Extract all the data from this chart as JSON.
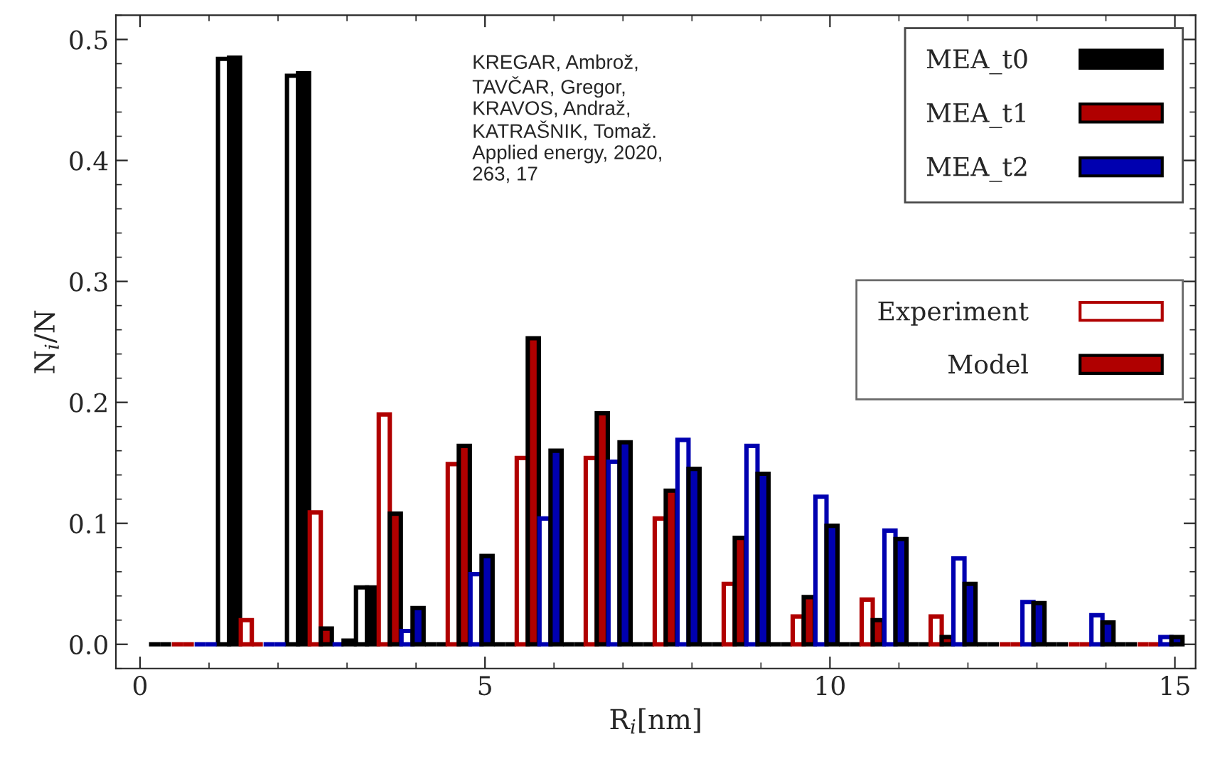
{
  "chart_data": {
    "type": "bar",
    "xlabel": "R$_{i}$[nm]",
    "ylabel": "N$_{i}$/N",
    "xlim": [
      -0.35,
      15.3
    ],
    "xticks": [
      0,
      5,
      10,
      15
    ],
    "ylim": [
      -0.02,
      0.52
    ],
    "yticks": [
      {
        "value": 0,
        "label": "0.0"
      },
      0.1,
      0.2,
      0.3,
      0.4,
      0.5
    ],
    "grid": false,
    "legend": "top right",
    "annotations": [
      "KREGAR, Ambrož,\nTAVČAR, Gregor,\nKRAVOS, Andraž,\nKATRAŠNIK, Tomaž.\nApplied energy, 2020,\n263, 17",
      "Experiment",
      "Model"
    ],
    "series": [
      {
        "color": "#000000",
        "x": [
          0.21,
          1.21,
          2.21,
          3.21,
          4.21,
          5.21,
          6.21,
          7.21,
          8.21,
          9.21,
          10.21,
          11.21,
          12.21,
          13.21,
          14.21
        ],
        "values": [
          0,
          0.484,
          0.47,
          0.047,
          0,
          0,
          0,
          0,
          0,
          0,
          0,
          0,
          0,
          0,
          0
        ]
      },
      {
        "name": "MEA_t0",
        "color": "#000000",
        "x": [
          0.37,
          1.37,
          2.37,
          3.37,
          4.37,
          5.37,
          6.37,
          7.37,
          8.37,
          9.37,
          10.37,
          11.37,
          12.37,
          13.37,
          14.37
        ],
        "values": [
          0,
          0.485,
          0.472,
          0.047,
          0,
          0,
          0,
          0,
          0,
          0,
          0,
          0,
          0,
          0,
          0
        ]
      },
      {
        "color": "#b00000",
        "x": [
          0.54,
          1.54,
          2.54,
          3.54,
          4.54,
          5.54,
          6.54,
          7.54,
          8.54,
          9.54,
          10.54,
          11.54,
          12.54,
          13.54,
          14.54
        ],
        "values": [
          0,
          0.02,
          0.109,
          0.19,
          0.149,
          0.154,
          0.154,
          0.104,
          0.05,
          0.023,
          0.037,
          0.023,
          0,
          0,
          0
        ]
      },
      {
        "name": "MEA_t1",
        "color": "#b00000",
        "x": [
          0.7,
          1.7,
          2.7,
          3.7,
          4.7,
          5.7,
          6.7,
          7.7,
          8.7,
          9.7,
          10.7,
          11.7,
          12.7,
          13.7,
          14.7
        ],
        "values": [
          0,
          0,
          0.013,
          0.108,
          0.164,
          0.253,
          0.191,
          0.127,
          0.088,
          0.039,
          0.02,
          0.006,
          0,
          0,
          0
        ]
      },
      {
        "color": "#0000b0",
        "x": [
          0.87,
          1.87,
          2.87,
          3.87,
          4.87,
          5.87,
          6.87,
          7.87,
          8.87,
          9.87,
          10.87,
          11.87,
          12.87,
          13.87,
          14.87
        ],
        "values": [
          0,
          0,
          0,
          0.011,
          0.058,
          0.104,
          0.151,
          0.169,
          0.164,
          0.122,
          0.094,
          0.071,
          0.035,
          0.024,
          0.006
        ]
      },
      {
        "name": "MEA_t2",
        "color": "#0000b0",
        "x": [
          1.03,
          2.03,
          3.03,
          4.03,
          5.03,
          6.03,
          7.03,
          8.03,
          9.03,
          10.03,
          11.03,
          12.03,
          13.03,
          14.03,
          15.03
        ],
        "values": [
          0,
          0,
          0.003,
          0.03,
          0.073,
          0.16,
          0.167,
          0.145,
          0.141,
          0.098,
          0.087,
          0.05,
          0.034,
          0.018,
          0.006
        ]
      }
    ]
  }
}
